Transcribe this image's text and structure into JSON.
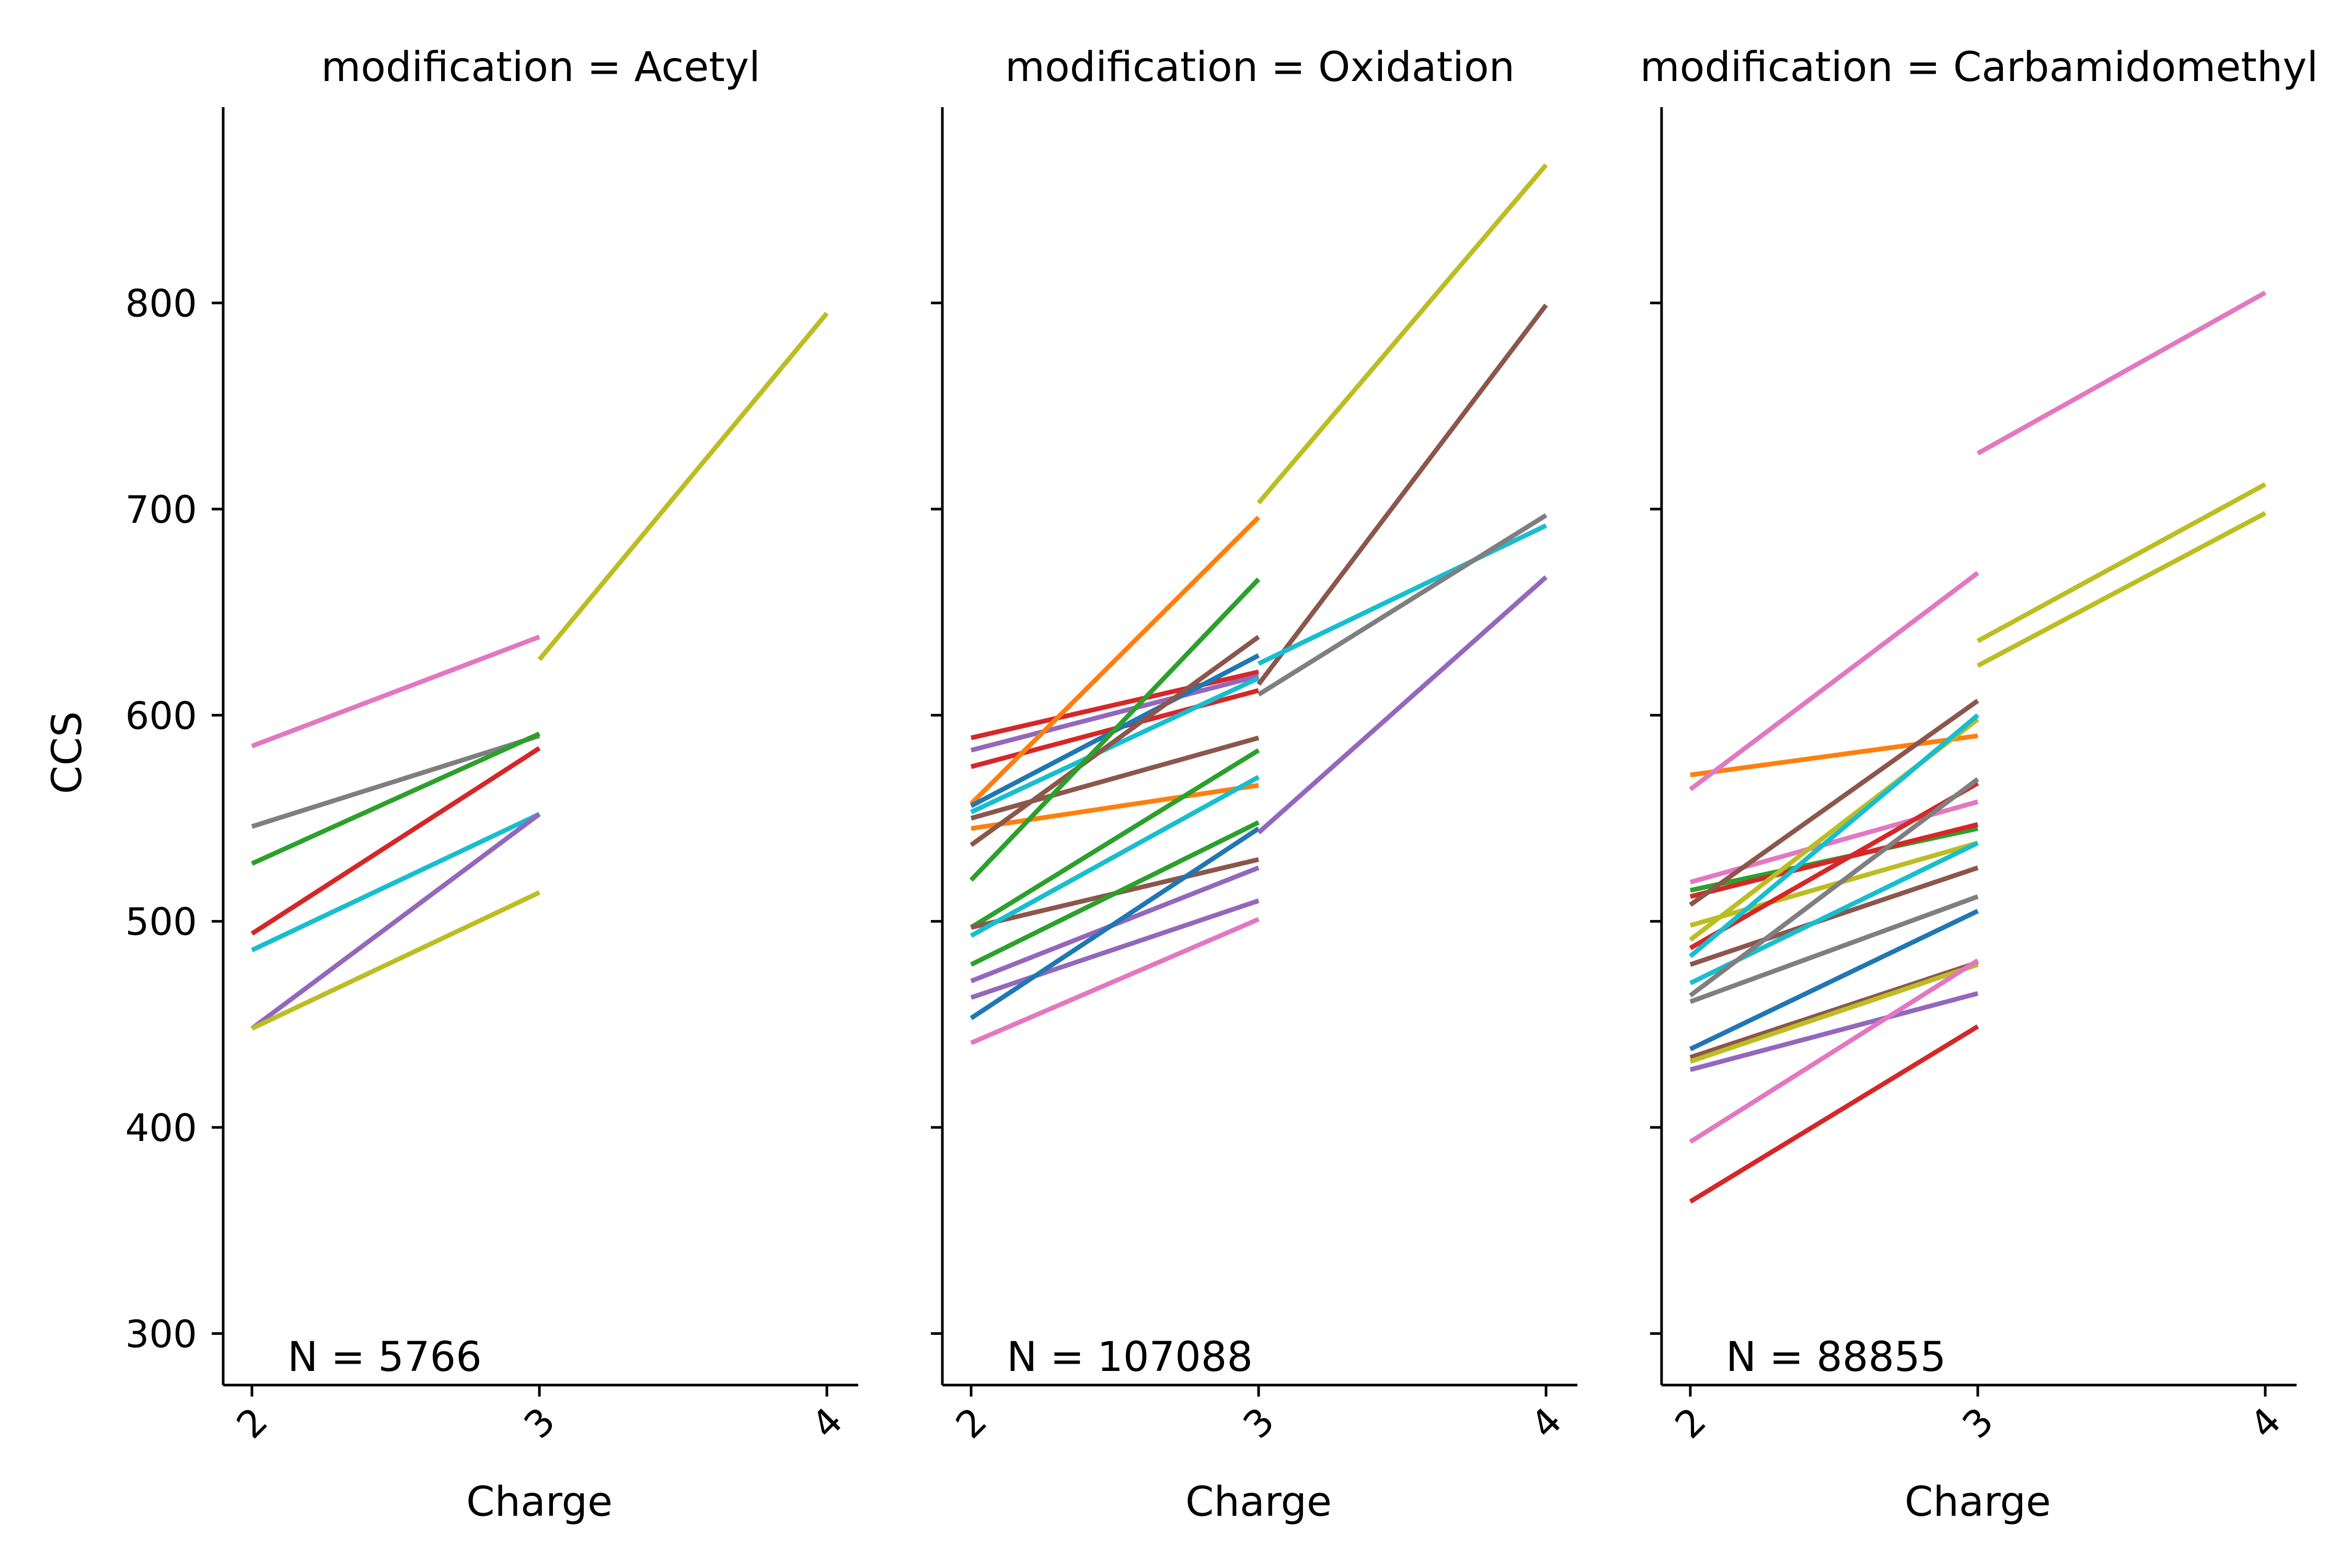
{
  "chart_data": {
    "type": "line",
    "xlabel": "Charge",
    "ylabel": "CCS",
    "x": [
      2,
      3,
      4
    ],
    "x_tick_labels": [
      "2",
      "3",
      "4"
    ],
    "y_ticks": [
      300,
      400,
      500,
      600,
      700,
      800
    ],
    "y_tick_labels": [
      "300",
      "400",
      "500",
      "600",
      "700",
      "800"
    ],
    "ylim": [
      275,
      895
    ],
    "shared_y": true,
    "grid": false,
    "palette": [
      "#1f77b4",
      "#ff7f0e",
      "#2ca02c",
      "#d62728",
      "#9467bd",
      "#8c564b",
      "#e377c2",
      "#7f7f7f",
      "#bcbd22",
      "#17becf"
    ],
    "panels": [
      {
        "title": "modification = Acetyl",
        "annotation": "N = 5766",
        "segments": [
          {
            "color": "#e377c2",
            "points": [
              [
                2,
                585
              ],
              [
                3,
                638
              ]
            ]
          },
          {
            "color": "#7f7f7f",
            "points": [
              [
                2,
                546
              ],
              [
                3,
                590
              ]
            ]
          },
          {
            "color": "#2ca02c",
            "points": [
              [
                2,
                528
              ],
              [
                3,
                591
              ]
            ]
          },
          {
            "color": "#d62728",
            "points": [
              [
                2,
                494
              ],
              [
                3,
                584
              ]
            ]
          },
          {
            "color": "#17becf",
            "points": [
              [
                2,
                486
              ],
              [
                3,
                552
              ]
            ]
          },
          {
            "color": "#9467bd",
            "points": [
              [
                2,
                448
              ],
              [
                3,
                552
              ]
            ]
          },
          {
            "color": "#bcbd22",
            "points": [
              [
                2,
                448
              ],
              [
                3,
                514
              ]
            ]
          },
          {
            "color": "#bcbd22",
            "points": [
              [
                3,
                627
              ],
              [
                4,
                795
              ]
            ]
          }
        ]
      },
      {
        "title": "modification = Oxidation",
        "annotation": "N = 107088",
        "segments": [
          {
            "color": "#d62728",
            "points": [
              [
                2,
                589
              ],
              [
                3,
                621
              ]
            ]
          },
          {
            "color": "#9467bd",
            "points": [
              [
                2,
                583
              ],
              [
                3,
                619
              ]
            ]
          },
          {
            "color": "#d62728",
            "points": [
              [
                2,
                575
              ],
              [
                3,
                612
              ]
            ]
          },
          {
            "color": "#ff7f0e",
            "points": [
              [
                2,
                557
              ],
              [
                3,
                696
              ]
            ]
          },
          {
            "color": "#1f77b4",
            "points": [
              [
                2,
                556
              ],
              [
                3,
                629
              ]
            ]
          },
          {
            "color": "#17becf",
            "points": [
              [
                2,
                553
              ],
              [
                3,
                618
              ]
            ]
          },
          {
            "color": "#8c564b",
            "points": [
              [
                2,
                550
              ],
              [
                3,
                589
              ]
            ]
          },
          {
            "color": "#ff7f0e",
            "points": [
              [
                2,
                545
              ],
              [
                3,
                566
              ]
            ]
          },
          {
            "color": "#8c564b",
            "points": [
              [
                2,
                537
              ],
              [
                3,
                638
              ]
            ]
          },
          {
            "color": "#2ca02c",
            "points": [
              [
                2,
                520
              ],
              [
                3,
                666
              ]
            ]
          },
          {
            "color": "#2ca02c",
            "points": [
              [
                2,
                497
              ],
              [
                3,
                583
              ]
            ]
          },
          {
            "color": "#8c564b",
            "points": [
              [
                2,
                497
              ],
              [
                3,
                530
              ]
            ]
          },
          {
            "color": "#17becf",
            "points": [
              [
                2,
                493
              ],
              [
                3,
                570
              ]
            ]
          },
          {
            "color": "#2ca02c",
            "points": [
              [
                2,
                479
              ],
              [
                3,
                548
              ]
            ]
          },
          {
            "color": "#9467bd",
            "points": [
              [
                2,
                471
              ],
              [
                3,
                526
              ]
            ]
          },
          {
            "color": "#9467bd",
            "points": [
              [
                2,
                463
              ],
              [
                3,
                510
              ]
            ]
          },
          {
            "color": "#1f77b4",
            "points": [
              [
                2,
                453
              ],
              [
                3,
                545
              ]
            ]
          },
          {
            "color": "#e377c2",
            "points": [
              [
                2,
                441
              ],
              [
                3,
                501
              ]
            ]
          },
          {
            "color": "#bcbd22",
            "points": [
              [
                3,
                703
              ],
              [
                4,
                867
              ]
            ]
          },
          {
            "color": "#8c564b",
            "points": [
              [
                3,
                615
              ],
              [
                4,
                799
              ]
            ]
          },
          {
            "color": "#17becf",
            "points": [
              [
                3,
                625
              ],
              [
                4,
                692
              ]
            ]
          },
          {
            "color": "#7f7f7f",
            "points": [
              [
                3,
                610
              ],
              [
                4,
                697
              ]
            ]
          },
          {
            "color": "#9467bd",
            "points": [
              [
                3,
                543
              ],
              [
                4,
                667
              ]
            ]
          }
        ]
      },
      {
        "title": "modification = Carbamidomethyl",
        "annotation": "N = 88855",
        "segments": [
          {
            "color": "#ff7f0e",
            "points": [
              [
                2,
                571
              ],
              [
                3,
                590
              ]
            ]
          },
          {
            "color": "#e377c2",
            "points": [
              [
                2,
                564
              ],
              [
                3,
                669
              ]
            ]
          },
          {
            "color": "#e377c2",
            "points": [
              [
                2,
                519
              ],
              [
                3,
                558
              ]
            ]
          },
          {
            "color": "#2ca02c",
            "points": [
              [
                2,
                515
              ],
              [
                3,
                545
              ]
            ]
          },
          {
            "color": "#d62728",
            "points": [
              [
                2,
                512
              ],
              [
                3,
                547
              ]
            ]
          },
          {
            "color": "#8c564b",
            "points": [
              [
                2,
                508
              ],
              [
                3,
                607
              ]
            ]
          },
          {
            "color": "#bcbd22",
            "points": [
              [
                2,
                498
              ],
              [
                3,
                538
              ]
            ]
          },
          {
            "color": "#bcbd22",
            "points": [
              [
                2,
                491
              ],
              [
                3,
                598
              ]
            ]
          },
          {
            "color": "#d62728",
            "points": [
              [
                2,
                487
              ],
              [
                3,
                567
              ]
            ]
          },
          {
            "color": "#17becf",
            "points": [
              [
                2,
                483
              ],
              [
                3,
                600
              ]
            ]
          },
          {
            "color": "#8c564b",
            "points": [
              [
                2,
                479
              ],
              [
                3,
                526
              ]
            ]
          },
          {
            "color": "#17becf",
            "points": [
              [
                2,
                470
              ],
              [
                3,
                538
              ]
            ]
          },
          {
            "color": "#7f7f7f",
            "points": [
              [
                2,
                464
              ],
              [
                3,
                569
              ]
            ]
          },
          {
            "color": "#7f7f7f",
            "points": [
              [
                2,
                461
              ],
              [
                3,
                512
              ]
            ]
          },
          {
            "color": "#1f77b4",
            "points": [
              [
                2,
                438
              ],
              [
                3,
                505
              ]
            ]
          },
          {
            "color": "#8c564b",
            "points": [
              [
                2,
                434
              ],
              [
                3,
                480
              ]
            ]
          },
          {
            "color": "#bcbd22",
            "points": [
              [
                2,
                432
              ],
              [
                3,
                479
              ]
            ]
          },
          {
            "color": "#9467bd",
            "points": [
              [
                2,
                428
              ],
              [
                3,
                465
              ]
            ]
          },
          {
            "color": "#e377c2",
            "points": [
              [
                2,
                393
              ],
              [
                3,
                481
              ]
            ]
          },
          {
            "color": "#d62728",
            "points": [
              [
                2,
                364
              ],
              [
                3,
                449
              ]
            ]
          },
          {
            "color": "#e377c2",
            "points": [
              [
                3,
                727
              ],
              [
                4,
                805
              ]
            ]
          },
          {
            "color": "#bcbd22",
            "points": [
              [
                3,
                636
              ],
              [
                4,
                712
              ]
            ]
          },
          {
            "color": "#bcbd22",
            "points": [
              [
                3,
                624
              ],
              [
                4,
                698
              ]
            ]
          }
        ]
      }
    ]
  }
}
